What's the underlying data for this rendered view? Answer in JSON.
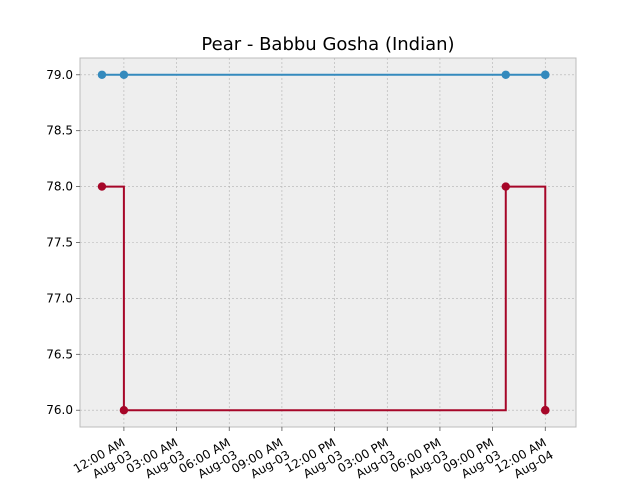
{
  "chart_data": {
    "type": "line",
    "title": "Pear - Babbu Gosha (Indian)",
    "xlabel": "",
    "ylabel": "",
    "ylim": [
      75.85,
      79.15
    ],
    "xlim": [
      "2023-08-02 21:30",
      "2023-08-04 01:45"
    ],
    "grid": true,
    "yticks": [
      "79.0",
      "78.5",
      "78.0",
      "77.5",
      "77.0",
      "76.5",
      "76.0"
    ],
    "xticks": [
      {
        "t": "2023-08-03 00:00",
        "line1": "12:00 AM",
        "line2": "Aug-03"
      },
      {
        "t": "2023-08-03 03:00",
        "line1": "03:00 AM",
        "line2": "Aug-03"
      },
      {
        "t": "2023-08-03 06:00",
        "line1": "06:00 AM",
        "line2": "Aug-03"
      },
      {
        "t": "2023-08-03 09:00",
        "line1": "09:00 AM",
        "line2": "Aug-03"
      },
      {
        "t": "2023-08-03 12:00",
        "line1": "12:00 PM",
        "line2": "Aug-03"
      },
      {
        "t": "2023-08-03 15:00",
        "line1": "03:00 PM",
        "line2": "Aug-03"
      },
      {
        "t": "2023-08-03 18:00",
        "line1": "06:00 PM",
        "line2": "Aug-03"
      },
      {
        "t": "2023-08-03 21:00",
        "line1": "09:00 PM",
        "line2": "Aug-03"
      },
      {
        "t": "2023-08-04 00:00",
        "line1": "12:00 AM",
        "line2": "Aug-04"
      }
    ],
    "series": [
      {
        "color": "#348ABD",
        "points": [
          {
            "t": "2023-08-02 22:45",
            "y": 79.0
          },
          {
            "t": "2023-08-03 00:00",
            "y": 79.0
          },
          {
            "t": "2023-08-03 21:45",
            "y": 79.0
          },
          {
            "t": "2023-08-04 00:00",
            "y": 79.0
          },
          {
            "t": "2023-08-04 00:00",
            "y": 79.0
          }
        ]
      },
      {
        "color": "#A60628",
        "points": [
          {
            "t": "2023-08-02 22:45",
            "y": 78.0
          },
          {
            "t": "2023-08-03 00:00",
            "y": 76.0
          },
          {
            "t": "2023-08-03 21:45",
            "y": 78.0
          },
          {
            "t": "2023-08-04 00:00",
            "y": 76.0
          },
          {
            "t": "2023-08-04 00:00",
            "y": 76.0
          }
        ]
      }
    ]
  }
}
